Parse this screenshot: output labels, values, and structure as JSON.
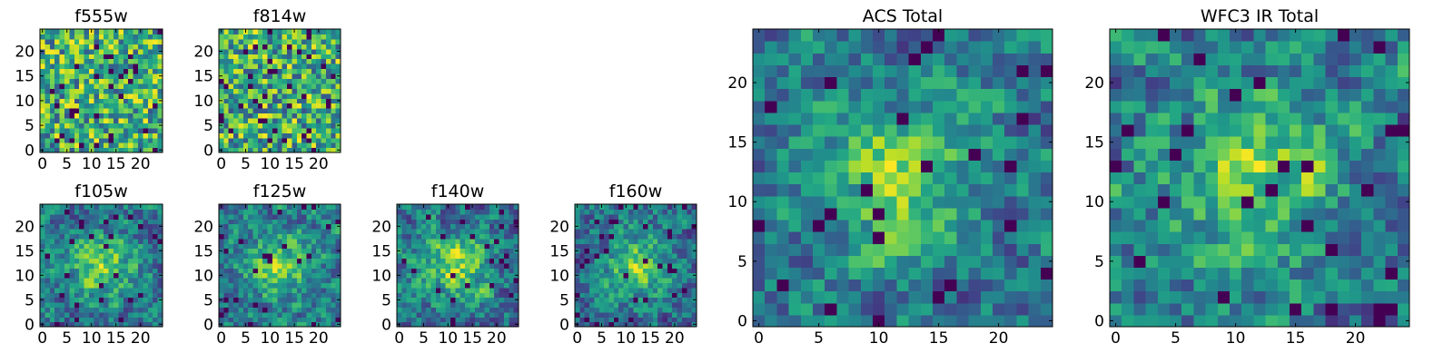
{
  "chart_data": [
    {
      "type": "heatmap",
      "title": "f555w",
      "colormap": "viridis",
      "grid_size": 25,
      "xlim": [
        -0.5,
        24.5
      ],
      "ylim": [
        -0.5,
        24.5
      ],
      "x_ticks": [
        0,
        5,
        10,
        15,
        20
      ],
      "y_ticks": [
        0,
        5,
        10,
        15,
        20
      ],
      "structure": "noise",
      "seed": 11
    },
    {
      "type": "heatmap",
      "title": "f814w",
      "colormap": "viridis",
      "grid_size": 25,
      "xlim": [
        -0.5,
        24.5
      ],
      "ylim": [
        -0.5,
        24.5
      ],
      "x_ticks": [
        0,
        5,
        10,
        15,
        20
      ],
      "y_ticks": [
        0,
        5,
        10,
        15,
        20
      ],
      "structure": "noise",
      "seed": 23
    },
    {
      "type": "heatmap",
      "title": "f105w",
      "colormap": "viridis",
      "grid_size": 25,
      "xlim": [
        -0.5,
        24.5
      ],
      "ylim": [
        -0.5,
        24.5
      ],
      "x_ticks": [
        0,
        5,
        10,
        15,
        20
      ],
      "y_ticks": [
        0,
        5,
        10,
        15,
        20
      ],
      "structure": "central-bright",
      "seed": 37
    },
    {
      "type": "heatmap",
      "title": "f125w",
      "colormap": "viridis",
      "grid_size": 25,
      "xlim": [
        -0.5,
        24.5
      ],
      "ylim": [
        -0.5,
        24.5
      ],
      "x_ticks": [
        0,
        5,
        10,
        15,
        20
      ],
      "y_ticks": [
        0,
        5,
        10,
        15,
        20
      ],
      "structure": "central-bright",
      "seed": 41
    },
    {
      "type": "heatmap",
      "title": "f140w",
      "colormap": "viridis",
      "grid_size": 25,
      "xlim": [
        -0.5,
        24.5
      ],
      "ylim": [
        -0.5,
        24.5
      ],
      "x_ticks": [
        0,
        5,
        10,
        15,
        20
      ],
      "y_ticks": [
        0,
        5,
        10,
        15,
        20
      ],
      "structure": "central-bright",
      "seed": 53
    },
    {
      "type": "heatmap",
      "title": "f160w",
      "colormap": "viridis",
      "grid_size": 25,
      "xlim": [
        -0.5,
        24.5
      ],
      "ylim": [
        -0.5,
        24.5
      ],
      "x_ticks": [
        0,
        5,
        10,
        15,
        20
      ],
      "y_ticks": [
        0,
        5,
        10,
        15,
        20
      ],
      "structure": "central-bright",
      "seed": 67
    },
    {
      "type": "heatmap",
      "title": "ACS Total",
      "colormap": "viridis",
      "grid_size": 25,
      "xlim": [
        -0.5,
        24.5
      ],
      "ylim": [
        -0.5,
        24.5
      ],
      "x_ticks": [
        0,
        5,
        10,
        15,
        20
      ],
      "y_ticks": [
        0,
        5,
        10,
        15,
        20
      ],
      "structure": "central-bright",
      "seed": 71
    },
    {
      "type": "heatmap",
      "title": "WFC3 IR Total",
      "colormap": "viridis",
      "grid_size": 25,
      "xlim": [
        -0.5,
        24.5
      ],
      "ylim": [
        -0.5,
        24.5
      ],
      "x_ticks": [
        0,
        5,
        10,
        15,
        20
      ],
      "y_ticks": [
        0,
        5,
        10,
        15,
        20
      ],
      "structure": "central-bright",
      "seed": 83
    }
  ]
}
